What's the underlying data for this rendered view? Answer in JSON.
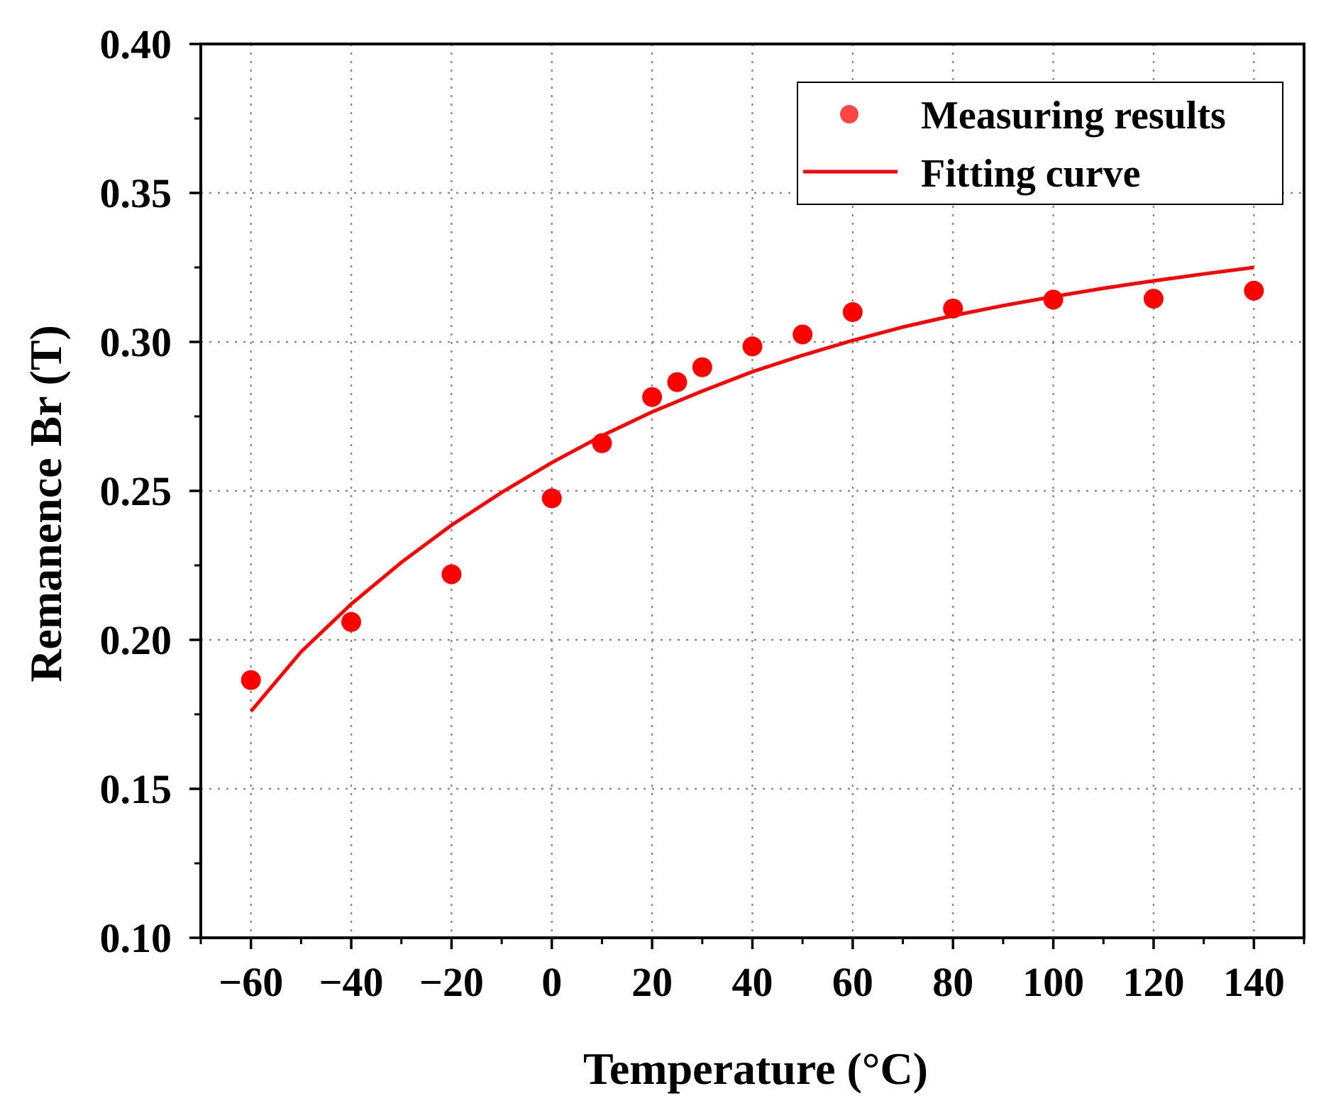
{
  "chart_data": {
    "type": "scatter",
    "xlabel": "Temperature (°C)",
    "ylabel": "Remanence Br (T)",
    "xlim": [
      -70,
      150
    ],
    "ylim": [
      0.1,
      0.4
    ],
    "x_ticks": [
      -60,
      -40,
      -20,
      0,
      20,
      40,
      60,
      80,
      100,
      120,
      140
    ],
    "x_tick_labels": [
      "−60",
      "−40",
      "−20",
      "0",
      "20",
      "40",
      "60",
      "80",
      "100",
      "120",
      "140"
    ],
    "x_minor_ticks": [
      -70,
      -50,
      -30,
      -10,
      10,
      30,
      50,
      70,
      90,
      110,
      130,
      150
    ],
    "y_ticks": [
      0.1,
      0.15,
      0.2,
      0.25,
      0.3,
      0.35,
      0.4
    ],
    "y_tick_labels": [
      "0.10",
      "0.15",
      "0.20",
      "0.25",
      "0.30",
      "0.35",
      "0.40"
    ],
    "y_minor_ticks": [
      0.125,
      0.175,
      0.225,
      0.275,
      0.325,
      0.375
    ],
    "grid": true,
    "legend": {
      "position": "top-right",
      "entries": [
        "Measuring results",
        "Fitting curve"
      ]
    },
    "series": [
      {
        "name": "Measuring results",
        "kind": "scatter",
        "color": "#ff0000",
        "x": [
          -60,
          -40,
          -20,
          0,
          10,
          20,
          25,
          30,
          40,
          50,
          60,
          80,
          100,
          120,
          140
        ],
        "y": [
          0.1865,
          0.206,
          0.222,
          0.2475,
          0.266,
          0.2815,
          0.2865,
          0.2915,
          0.2985,
          0.3025,
          0.31,
          0.3112,
          0.3142,
          0.3145,
          0.3172
        ]
      },
      {
        "name": "Fitting curve",
        "kind": "line",
        "color": "#ff0000",
        "x": [
          -60,
          -50,
          -40,
          -30,
          -20,
          -10,
          0,
          10,
          20,
          30,
          40,
          50,
          60,
          70,
          80,
          90,
          100,
          110,
          120,
          130,
          140
        ],
        "y": [
          0.176,
          0.196,
          0.212,
          0.226,
          0.2385,
          0.2495,
          0.2595,
          0.2685,
          0.2765,
          0.2835,
          0.29,
          0.2955,
          0.3005,
          0.305,
          0.3088,
          0.3122,
          0.3152,
          0.318,
          0.3205,
          0.3228,
          0.325
        ]
      }
    ]
  }
}
